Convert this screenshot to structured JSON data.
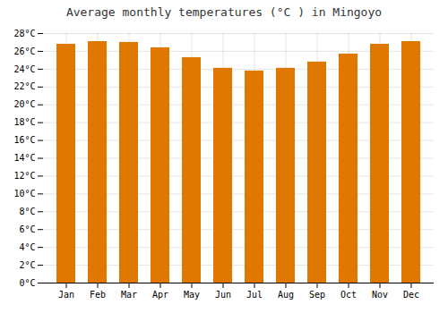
{
  "chart_data": {
    "type": "bar",
    "title": "Average monthly temperatures (°C ) in Mingoyo",
    "categories": [
      "Jan",
      "Feb",
      "Mar",
      "Apr",
      "May",
      "Jun",
      "Jul",
      "Aug",
      "Sep",
      "Oct",
      "Nov",
      "Dec"
    ],
    "values": [
      26.8,
      27.1,
      27.0,
      26.4,
      25.3,
      24.1,
      23.8,
      24.1,
      24.8,
      25.7,
      26.8,
      27.1
    ],
    "color": "#E07800",
    "ylim": [
      0,
      28
    ],
    "yticks": [
      {
        "value": 0,
        "label": "0°C"
      },
      {
        "value": 2,
        "label": "2°C"
      },
      {
        "value": 4,
        "label": "4°C"
      },
      {
        "value": 6,
        "label": "6°C"
      },
      {
        "value": 8,
        "label": "8°C"
      },
      {
        "value": 10,
        "label": "10°C"
      },
      {
        "value": 12,
        "label": "12°C"
      },
      {
        "value": 14,
        "label": "14°C"
      },
      {
        "value": 16,
        "label": "16°C"
      },
      {
        "value": 18,
        "label": "18°C"
      },
      {
        "value": 20,
        "label": "20°C"
      },
      {
        "value": 22,
        "label": "22°C"
      },
      {
        "value": 24,
        "label": "24°C"
      },
      {
        "value": 26,
        "label": "26°C"
      },
      {
        "value": 28,
        "label": "28°C"
      }
    ],
    "grid": true
  }
}
